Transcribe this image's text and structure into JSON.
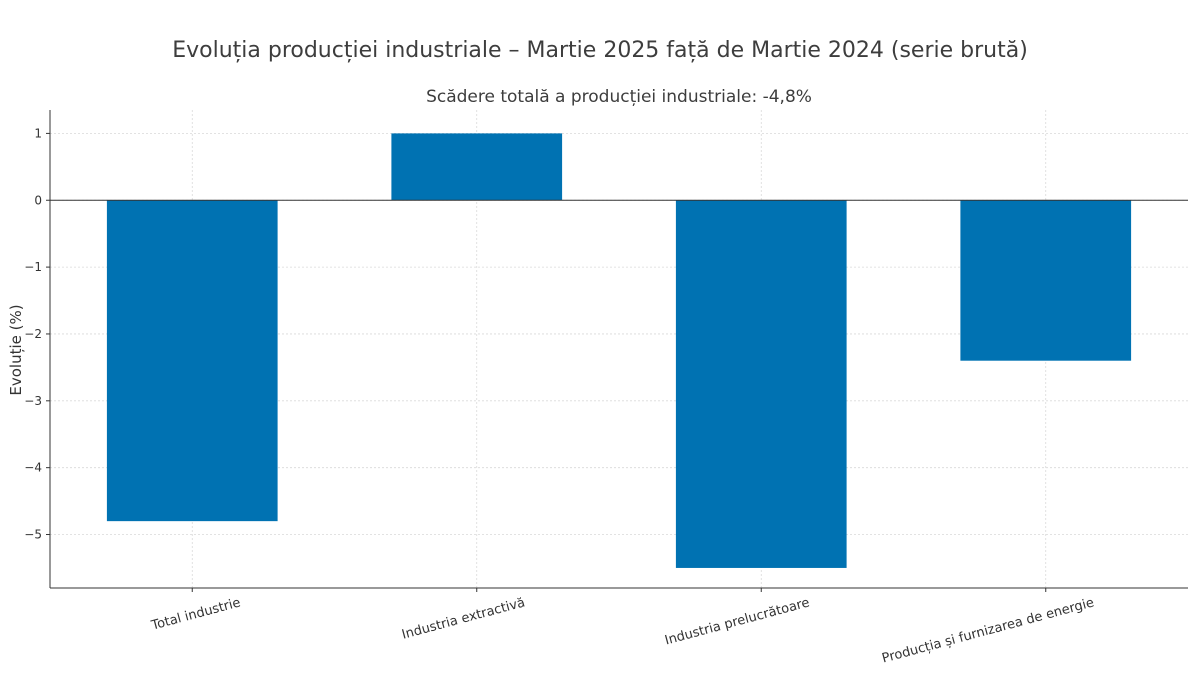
{
  "chart_data": {
    "type": "bar",
    "title": "Evoluția producției industriale – Martie 2025 față de Martie 2024 (serie brută)",
    "subtitle": "Scădere totală a producției industriale: -4,8%",
    "xlabel": "",
    "ylabel": "Evoluție (%)",
    "categories": [
      "Total industrie",
      "Industria extractivă",
      "Industria prelucrătoare",
      "Producția și furnizarea de energie"
    ],
    "values": [
      -4.8,
      1.0,
      -5.5,
      -2.4
    ],
    "ylim": [
      -5.8,
      1.35
    ],
    "yticks": [
      1,
      0,
      -1,
      -2,
      -3,
      -4,
      -5
    ],
    "ytick_labels": [
      "1",
      "0",
      "−1",
      "−2",
      "−3",
      "−4",
      "−5"
    ],
    "bar_color": "#0072b2",
    "grid": true,
    "legend": "none"
  }
}
